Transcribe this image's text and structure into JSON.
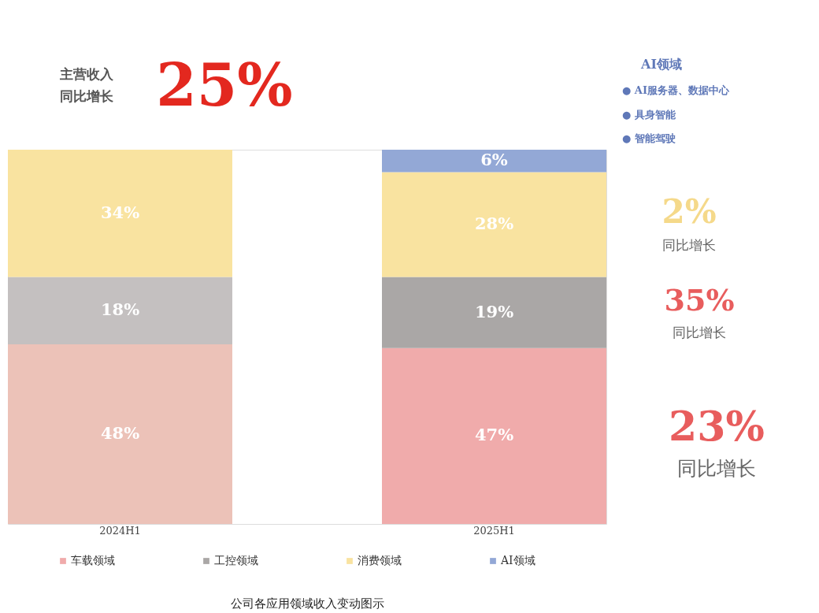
{
  "chart_data": {
    "type": "bar",
    "stacked": true,
    "title": "公司各应用领域收入变动图示",
    "categories": [
      "2024H1",
      "2025H1"
    ],
    "series": [
      {
        "name": "车载领域",
        "color": "#f0abab",
        "colors": [
          "#ecc2b8",
          "#f0abab"
        ],
        "values": [
          48,
          47
        ],
        "value_labels": [
          "48%",
          "47%"
        ]
      },
      {
        "name": "工控领域",
        "color": "#aaa7a6",
        "colors": [
          "#c4c0c0",
          "#aaa7a6"
        ],
        "values": [
          18,
          19
        ],
        "value_labels": [
          "18%",
          "19%"
        ]
      },
      {
        "name": "消费领域",
        "color": "#f9e3a0",
        "colors": [
          "#f9e3a0",
          "#f9e3a0"
        ],
        "values": [
          34,
          28
        ],
        "value_labels": [
          "34%",
          "28%"
        ]
      },
      {
        "name": "AI领域",
        "color": "#93a8d6",
        "colors": [
          "#93a8d6",
          "#93a8d6"
        ],
        "values": [
          null,
          6
        ],
        "value_labels": [
          null,
          "6%"
        ]
      }
    ],
    "annotations": [
      "主营收入",
      "同比增长",
      "25%",
      "AI领域",
      "● AI服务器、数据中心",
      "● 具身智能",
      "● 智能驾驶",
      "2%",
      "同比增长",
      "35%",
      "同比增长",
      "23%",
      "同比增长"
    ],
    "legend": "bottom",
    "tick_labels": "x",
    "grid": false
  }
}
